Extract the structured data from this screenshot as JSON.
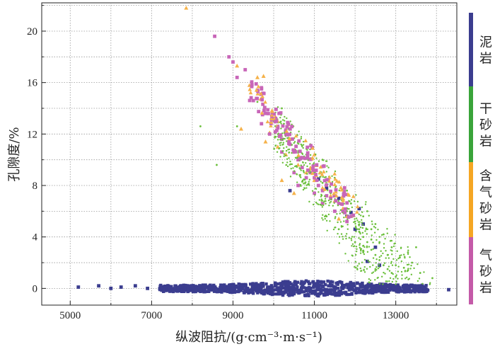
{
  "chart_data": {
    "type": "scatter",
    "xlabel": "纵波阻抗/(g·cm⁻³·m·s⁻¹)",
    "ylabel": "孔隙度/%",
    "xlim": [
      4300,
      14500
    ],
    "ylim": [
      -1.3,
      22.2
    ],
    "xticks": [
      "5000",
      "7000",
      "9000",
      "11000",
      "13000"
    ],
    "yticks": [
      "0",
      "4",
      "8",
      "12",
      "16",
      "20"
    ],
    "grid": true,
    "legend_placement": "right, vertical color bar",
    "series": [
      {
        "name": "泥岩",
        "color": "#3b3d8f",
        "marker": "square",
        "points": [
          [
            5200,
            0.1
          ],
          [
            5700,
            0.2
          ],
          [
            6000,
            0.0
          ],
          [
            6250,
            0.1
          ],
          [
            6600,
            0.2
          ],
          [
            6900,
            0.0
          ],
          [
            7400,
            0.1
          ],
          [
            7900,
            0.0
          ],
          [
            8300,
            -0.1
          ],
          [
            8700,
            0.1
          ],
          [
            9000,
            0.0
          ],
          [
            9300,
            0.2
          ],
          [
            9600,
            -0.1
          ],
          [
            9900,
            0.1
          ],
          [
            10100,
            0.0
          ],
          [
            10300,
            0.2
          ],
          [
            10500,
            -0.2
          ],
          [
            10700,
            0.1
          ],
          [
            10900,
            0.0
          ],
          [
            11100,
            0.2
          ],
          [
            11300,
            -0.1
          ],
          [
            11500,
            0.1
          ],
          [
            11700,
            0.0
          ],
          [
            11900,
            0.2
          ],
          [
            12100,
            -0.1
          ],
          [
            12300,
            0.1
          ],
          [
            12500,
            0.0
          ],
          [
            12700,
            0.2
          ],
          [
            12900,
            0.0
          ],
          [
            13200,
            0.1
          ],
          [
            13500,
            0.0
          ],
          [
            14300,
            -0.1
          ],
          [
            10400,
            7.6
          ],
          [
            11100,
            8.5
          ],
          [
            11300,
            7.8
          ],
          [
            11600,
            7.0
          ],
          [
            11800,
            5.6
          ],
          [
            12000,
            4.6
          ],
          [
            12200,
            5.0
          ],
          [
            12300,
            2.1
          ],
          [
            12600,
            1.8
          ],
          [
            12500,
            3.2
          ],
          [
            12100,
            6.2
          ],
          [
            11900,
            5.9
          ]
        ]
      },
      {
        "name": "干砂岩",
        "color": "#6abf3a",
        "marker": "dot",
        "points": [
          [
            8200,
            12.6
          ],
          [
            8600,
            9.6
          ],
          [
            9100,
            12.6
          ],
          [
            9600,
            14.5
          ],
          [
            10000,
            13.0
          ],
          [
            10200,
            14.0
          ],
          [
            10600,
            11.4
          ],
          [
            10800,
            10.4
          ],
          [
            11000,
            9.0
          ],
          [
            11200,
            8.2
          ],
          [
            11400,
            7.4
          ],
          [
            11600,
            6.6
          ],
          [
            11800,
            6.0
          ],
          [
            12000,
            5.2
          ],
          [
            12100,
            4.6
          ],
          [
            12200,
            4.0
          ],
          [
            12300,
            3.6
          ],
          [
            12400,
            3.0
          ],
          [
            12500,
            2.6
          ],
          [
            12600,
            2.2
          ],
          [
            12700,
            1.8
          ],
          [
            12800,
            1.5
          ],
          [
            12900,
            1.2
          ],
          [
            13000,
            0.9
          ],
          [
            13200,
            1.6
          ],
          [
            13400,
            2.0
          ],
          [
            13600,
            1.2
          ],
          [
            13900,
            0.8
          ],
          [
            12700,
            4.2
          ],
          [
            12900,
            3.2
          ],
          [
            12500,
            5.0
          ],
          [
            12300,
            6.0
          ],
          [
            11800,
            7.6
          ],
          [
            11500,
            8.6
          ],
          [
            11200,
            10.0
          ],
          [
            10900,
            11.2
          ],
          [
            12600,
            3.6
          ],
          [
            12800,
            2.6
          ],
          [
            13100,
            2.4
          ],
          [
            13300,
            1.4
          ],
          [
            12400,
            4.6
          ],
          [
            12200,
            5.6
          ],
          [
            11900,
            6.6
          ],
          [
            11700,
            7.4
          ],
          [
            13000,
            1.8
          ],
          [
            12500,
            1.5
          ],
          [
            12200,
            2.8
          ],
          [
            12000,
            3.6
          ],
          [
            11600,
            4.6
          ],
          [
            11300,
            5.6
          ],
          [
            13300,
            2.8
          ],
          [
            13500,
            3.2
          ],
          [
            12400,
            3.8
          ],
          [
            12100,
            4.4
          ]
        ]
      },
      {
        "name": "含气砂岩",
        "color": "#f5b24a",
        "marker": "triangle",
        "points": [
          [
            7850,
            21.8
          ],
          [
            9100,
            17.3
          ],
          [
            9600,
            16.4
          ],
          [
            9750,
            16.5
          ],
          [
            9200,
            12.4
          ],
          [
            9900,
            12.1
          ],
          [
            10100,
            11.0
          ],
          [
            10300,
            10.4
          ],
          [
            10600,
            9.6
          ],
          [
            10800,
            9.0
          ],
          [
            11000,
            8.4
          ],
          [
            11200,
            7.8
          ],
          [
            11400,
            7.2
          ],
          [
            11500,
            6.8
          ],
          [
            11700,
            6.2
          ],
          [
            11800,
            5.6
          ],
          [
            10200,
            8.4
          ],
          [
            10500,
            7.4
          ],
          [
            11000,
            10.4
          ],
          [
            10400,
            11.6
          ],
          [
            9800,
            11.4
          ],
          [
            11600,
            5.4
          ]
        ]
      },
      {
        "name": "气砂岩",
        "color": "#c866b8",
        "marker": "square",
        "points": [
          [
            8550,
            19.6
          ],
          [
            8900,
            18.0
          ],
          [
            9000,
            17.6
          ],
          [
            9100,
            16.4
          ],
          [
            9300,
            17.0
          ],
          [
            9600,
            15.4
          ],
          [
            9500,
            14.6
          ],
          [
            9700,
            15.6
          ],
          [
            9800,
            13.6
          ],
          [
            10000,
            13.2
          ],
          [
            10100,
            12.6
          ],
          [
            9900,
            12.0
          ],
          [
            10300,
            12.0
          ],
          [
            10400,
            11.2
          ],
          [
            10500,
            10.6
          ],
          [
            10600,
            10.0
          ],
          [
            10700,
            9.4
          ],
          [
            10900,
            9.0
          ],
          [
            11000,
            8.6
          ],
          [
            11100,
            8.0
          ],
          [
            11200,
            7.6
          ],
          [
            11300,
            7.2
          ],
          [
            11400,
            7.0
          ],
          [
            11600,
            6.6
          ],
          [
            11700,
            6.0
          ],
          [
            11900,
            5.6
          ],
          [
            10200,
            10.6
          ],
          [
            10800,
            8.6
          ],
          [
            10600,
            8.0
          ],
          [
            11000,
            7.4
          ],
          [
            11200,
            6.6
          ],
          [
            11500,
            6.0
          ],
          [
            11800,
            5.2
          ],
          [
            9700,
            12.8
          ],
          [
            10200,
            11.6
          ],
          [
            10500,
            9.0
          ]
        ]
      }
    ],
    "legend": [
      {
        "label": "泥岩",
        "color": "#3b3d8f"
      },
      {
        "label": "干砂岩",
        "color": "#3aa43a"
      },
      {
        "label": "含气砂岩",
        "color": "#f5a623"
      },
      {
        "label": "气砂岩",
        "color": "#c45aa8"
      }
    ]
  }
}
